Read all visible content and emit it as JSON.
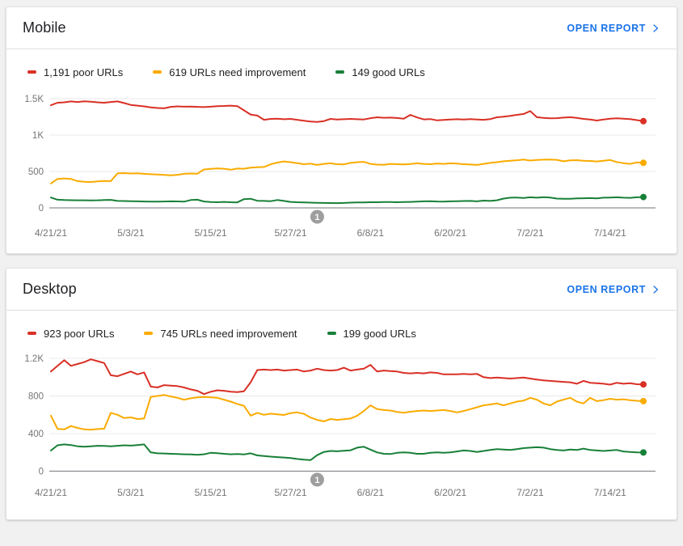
{
  "colors": {
    "poor": "#d93025",
    "needs_improvement": "#f9ab00",
    "good": "#188038",
    "link": "#1a73e8",
    "gridline": "#e9e9e9",
    "baseline": "#8a8d91",
    "axis_text": "#757575",
    "marker_fill": "#9e9e9e"
  },
  "cards": [
    {
      "title": "Mobile",
      "open_report_label": "OPEN REPORT",
      "legend": [
        {
          "label": "1,191 poor URLs",
          "color_key": "poor"
        },
        {
          "label": "619 URLs need improvement",
          "color_key": "needs_improvement"
        },
        {
          "label": "149 good URLs",
          "color_key": "good"
        }
      ],
      "chart_data": {
        "type": "line",
        "title": "Mobile Core Web Vitals URLs over time",
        "x_start_date": "4/21/21",
        "x_end_date": "7/19/21",
        "x_tick_labels": [
          "4/21/21",
          "5/3/21",
          "5/15/21",
          "5/27/21",
          "6/8/21",
          "6/20/21",
          "7/2/21",
          "7/14/21"
        ],
        "x_tick_day_indices": [
          0,
          12,
          24,
          36,
          48,
          60,
          72,
          84
        ],
        "y_tick_labels": [
          "0",
          "500",
          "1K",
          "1.5K"
        ],
        "y_tick_values": [
          0,
          500,
          1000,
          1500
        ],
        "ylim": [
          0,
          1500
        ],
        "grid": true,
        "legend_position": "top",
        "annotation_marker": {
          "label": "1",
          "day_index": 40
        },
        "series": [
          {
            "name": "poor URLs",
            "color_key": "poor",
            "current_value": 1191,
            "values": [
              1410,
              1445,
              1450,
              1462,
              1455,
              1465,
              1458,
              1450,
              1445,
              1455,
              1462,
              1440,
              1415,
              1405,
              1395,
              1380,
              1372,
              1368,
              1388,
              1395,
              1390,
              1392,
              1388,
              1384,
              1390,
              1398,
              1400,
              1405,
              1398,
              1340,
              1282,
              1268,
              1210,
              1222,
              1226,
              1218,
              1222,
              1210,
              1198,
              1186,
              1180,
              1192,
              1222,
              1215,
              1218,
              1222,
              1218,
              1214,
              1232,
              1244,
              1238,
              1240,
              1234,
              1224,
              1278,
              1242,
              1216,
              1220,
              1202,
              1208,
              1214,
              1218,
              1214,
              1220,
              1214,
              1210,
              1220,
              1244,
              1252,
              1264,
              1278,
              1290,
              1330,
              1246,
              1236,
              1230,
              1232,
              1240,
              1246,
              1236,
              1222,
              1214,
              1200,
              1214,
              1224,
              1230,
              1226,
              1220,
              1205,
              1191
            ]
          },
          {
            "name": "URLs need improvement",
            "color_key": "needs_improvement",
            "current_value": 619,
            "values": [
              335,
              398,
              405,
              398,
              368,
              358,
              355,
              364,
              370,
              368,
              475,
              478,
              472,
              476,
              468,
              462,
              458,
              452,
              448,
              455,
              468,
              472,
              470,
              528,
              536,
              542,
              538,
              524,
              540,
              538,
              552,
              558,
              562,
              598,
              622,
              638,
              628,
              615,
              600,
              608,
              590,
              604,
              612,
              600,
              598,
              618,
              628,
              632,
              605,
              595,
              592,
              605,
              600,
              598,
              602,
              612,
              605,
              600,
              610,
              605,
              612,
              608,
              600,
              596,
              590,
              605,
              618,
              628,
              640,
              648,
              655,
              665,
              650,
              658,
              662,
              665,
              660,
              640,
              652,
              656,
              648,
              644,
              638,
              648,
              658,
              630,
              615,
              605,
              624,
              619
            ]
          },
          {
            "name": "good URLs",
            "color_key": "good",
            "current_value": 149,
            "values": [
              142,
              112,
              108,
              106,
              105,
              104,
              103,
              105,
              108,
              110,
              96,
              94,
              92,
              90,
              88,
              87,
              85,
              88,
              90,
              89,
              86,
              108,
              112,
              88,
              80,
              78,
              82,
              78,
              76,
              120,
              126,
              98,
              95,
              92,
              108,
              95,
              82,
              78,
              76,
              72,
              70,
              68,
              67,
              66,
              68,
              72,
              75,
              76,
              78,
              78,
              80,
              80,
              78,
              80,
              82,
              85,
              90,
              92,
              88,
              86,
              90,
              92,
              94,
              96,
              90,
              100,
              96,
              105,
              128,
              140,
              142,
              136,
              146,
              140,
              148,
              142,
              128,
              124,
              126,
              130,
              132,
              134,
              130,
              140,
              142,
              146,
              140,
              138,
              145,
              149
            ]
          }
        ]
      }
    },
    {
      "title": "Desktop",
      "open_report_label": "OPEN REPORT",
      "legend": [
        {
          "label": "923 poor URLs",
          "color_key": "poor"
        },
        {
          "label": "745 URLs need improvement",
          "color_key": "needs_improvement"
        },
        {
          "label": "199 good URLs",
          "color_key": "good"
        }
      ],
      "chart_data": {
        "type": "line",
        "title": "Desktop Core Web Vitals URLs over time",
        "x_start_date": "4/21/21",
        "x_end_date": "7/19/21",
        "x_tick_labels": [
          "4/21/21",
          "5/3/21",
          "5/15/21",
          "5/27/21",
          "6/8/21",
          "6/20/21",
          "7/2/21",
          "7/14/21"
        ],
        "x_tick_day_indices": [
          0,
          12,
          24,
          36,
          48,
          60,
          72,
          84
        ],
        "y_tick_labels": [
          "0",
          "400",
          "800",
          "1.2K"
        ],
        "y_tick_values": [
          0,
          400,
          800,
          1200
        ],
        "ylim": [
          0,
          1200
        ],
        "grid": true,
        "legend_position": "top",
        "annotation_marker": {
          "label": "1",
          "day_index": 40
        },
        "series": [
          {
            "name": "poor URLs",
            "color_key": "poor",
            "current_value": 923,
            "values": [
              1060,
              1120,
              1180,
              1120,
              1140,
              1160,
              1190,
              1170,
              1150,
              1020,
              1010,
              1035,
              1060,
              1030,
              1050,
              900,
              890,
              915,
              910,
              905,
              890,
              870,
              855,
              820,
              845,
              860,
              855,
              845,
              840,
              850,
              945,
              1075,
              1080,
              1075,
              1080,
              1070,
              1075,
              1080,
              1060,
              1070,
              1090,
              1075,
              1070,
              1075,
              1100,
              1070,
              1080,
              1090,
              1130,
              1060,
              1070,
              1065,
              1060,
              1045,
              1040,
              1045,
              1040,
              1050,
              1045,
              1030,
              1030,
              1030,
              1035,
              1030,
              1035,
              1000,
              990,
              995,
              990,
              985,
              990,
              995,
              985,
              975,
              965,
              960,
              955,
              950,
              945,
              930,
              960,
              940,
              935,
              930,
              920,
              940,
              930,
              935,
              925,
              923
            ]
          },
          {
            "name": "URLs need improvement",
            "color_key": "needs_improvement",
            "current_value": 745,
            "values": [
              590,
              450,
              445,
              480,
              460,
              445,
              440,
              448,
              452,
              620,
              600,
              565,
              572,
              555,
              560,
              790,
              800,
              810,
              795,
              780,
              760,
              775,
              785,
              790,
              785,
              780,
              760,
              740,
              715,
              695,
              590,
              620,
              600,
              612,
              605,
              598,
              618,
              625,
              610,
              570,
              545,
              530,
              555,
              545,
              552,
              560,
              590,
              640,
              700,
              660,
              650,
              645,
              630,
              622,
              632,
              640,
              645,
              640,
              645,
              650,
              640,
              625,
              640,
              660,
              680,
              700,
              710,
              720,
              700,
              720,
              740,
              750,
              780,
              760,
              720,
              700,
              740,
              760,
              780,
              740,
              720,
              780,
              745,
              755,
              770,
              760,
              765,
              755,
              748,
              745
            ]
          },
          {
            "name": "good URLs",
            "color_key": "good",
            "current_value": 199,
            "values": [
              220,
              275,
              285,
              278,
              265,
              260,
              265,
              270,
              268,
              265,
              270,
              275,
              272,
              278,
              285,
              200,
              190,
              188,
              185,
              182,
              180,
              178,
              175,
              180,
              195,
              192,
              185,
              180,
              182,
              178,
              190,
              168,
              162,
              155,
              150,
              145,
              140,
              130,
              122,
              118,
              170,
              205,
              215,
              212,
              218,
              222,
              250,
              260,
              230,
              200,
              185,
              182,
              195,
              200,
              195,
              185,
              185,
              195,
              200,
              195,
              200,
              210,
              220,
              215,
              205,
              215,
              225,
              235,
              230,
              225,
              235,
              245,
              250,
              255,
              250,
              235,
              225,
              220,
              230,
              225,
              240,
              225,
              220,
              215,
              220,
              225,
              210,
              205,
              200,
              199
            ]
          }
        ]
      }
    }
  ]
}
